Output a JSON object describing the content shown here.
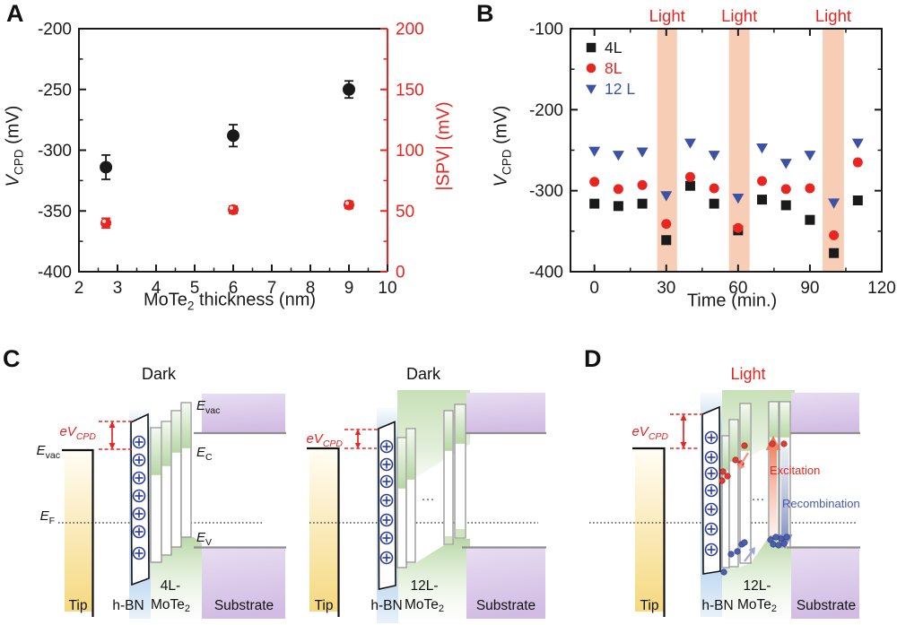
{
  "panel_letters": {
    "a": "A",
    "b": "B",
    "c": "C",
    "d": "D"
  },
  "colors": {
    "black": "#1a1a1a",
    "red": "#e8251f",
    "blue": "#3c52a5",
    "band": "#f8cdb6",
    "gray_line": "#8f8f8f"
  },
  "axis_label_parts": {
    "vcpd": {
      "main": "V",
      "sub": "CPD",
      "rest": " (mV)"
    },
    "spv": {
      "text": "|SPV| (mV)"
    },
    "thickness": {
      "main": "MoTe",
      "sub": "2",
      "rest": " thickness (nm)"
    },
    "time": {
      "text": "Time (min.)"
    }
  },
  "chart_data": [
    {
      "panel": "A",
      "type": "scatter",
      "xlabel": "MoTe2 thickness (nm)",
      "ylabel_left": "V_CPD (mV)",
      "ylabel_right": "|SPV| (mV)",
      "xlim": [
        2,
        10
      ],
      "xticks": [
        2,
        3,
        4,
        5,
        6,
        7,
        8,
        9,
        10
      ],
      "ylim_left": [
        -400,
        -200
      ],
      "yticks_left": [
        -400,
        -350,
        -300,
        -250,
        -200
      ],
      "ylim_right": [
        0,
        200
      ],
      "yticks_right": [
        0,
        50,
        100,
        150,
        200
      ],
      "x": [
        2.7,
        6,
        9
      ],
      "series": [
        {
          "name": "V_CPD",
          "axis": "left",
          "marker": "circle",
          "color": "#1a1a1a",
          "values": [
            -314,
            -288,
            -250
          ],
          "errors": [
            10,
            9,
            7
          ],
          "marker_r": 7,
          "highlight": false
        },
        {
          "name": "|SPV|",
          "axis": "right",
          "marker": "circle",
          "color": "#e8251f",
          "values": [
            40,
            51,
            55
          ],
          "errors": [
            4,
            3,
            3
          ],
          "marker_r": 6,
          "highlight": true
        }
      ],
      "grid": false,
      "legend": "none"
    },
    {
      "panel": "B",
      "type": "scatter",
      "xlabel": "Time (min.)",
      "ylabel": "V_CPD (mV)",
      "xlim": [
        -10,
        120
      ],
      "xticks": [
        0,
        30,
        60,
        90,
        120
      ],
      "ylim": [
        -400,
        -100
      ],
      "yticks": [
        -400,
        -300,
        -200,
        -100
      ],
      "x": [
        0,
        10,
        20,
        30,
        40,
        50,
        60,
        70,
        80,
        90,
        100,
        110
      ],
      "series": [
        {
          "name": "4L",
          "marker": "square",
          "color": "#1a1a1a",
          "values": [
            -316,
            -319,
            -316,
            -361,
            -294,
            -316,
            -349,
            -311,
            -318,
            -336,
            -377,
            -312
          ]
        },
        {
          "name": "8L",
          "marker": "circle",
          "color": "#e8251f",
          "values": [
            -289,
            -298,
            -293,
            -341,
            -283,
            -297,
            -346,
            -288,
            -298,
            -297,
            -355,
            -265
          ]
        },
        {
          "name": "12 L",
          "marker": "triangle-down",
          "color": "#3c52a5",
          "values": [
            -251,
            -256,
            -252,
            -306,
            -241,
            -256,
            -309,
            -247,
            -266,
            -256,
            -315,
            -241
          ]
        }
      ],
      "light_bands": [
        [
          26.2,
          34.5
        ],
        [
          56.2,
          64.8
        ],
        [
          95.3,
          104.2
        ]
      ],
      "band_label": "Light",
      "grid": false,
      "legend_position": "upper-left-inside"
    }
  ],
  "diagram_labels": {
    "dark": "Dark",
    "light": "Light",
    "tip": "Tip",
    "hbn": "h-BN",
    "substrate": "Substrate",
    "mote_4l": "4L-",
    "mote_12l": "12L-",
    "mote_main": "MoTe",
    "mote_sub": "2",
    "e": "E",
    "sub_vac": "vac",
    "sub_f": "F",
    "sub_c": "C",
    "sub_v": "V",
    "ev": "eV",
    "sub_cpd": "CPD",
    "excitation": "Excitation",
    "recombination": "Recombination",
    "ellipsis": "···"
  }
}
